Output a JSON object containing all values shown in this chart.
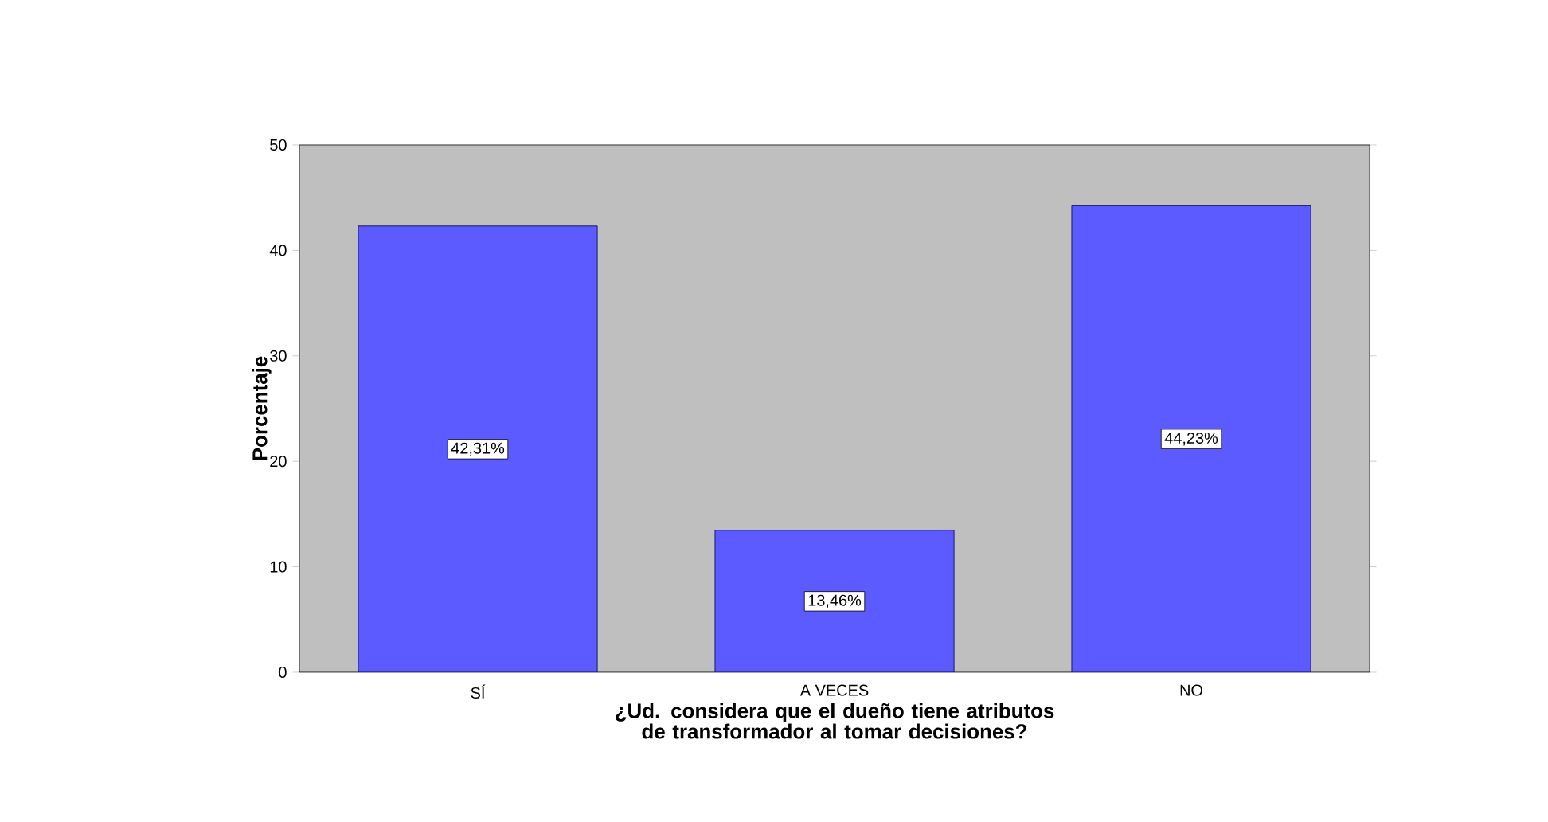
{
  "chart_data": {
    "type": "bar",
    "xlabel": "¿Ud. considera que el dueño tiene atributos de transformador al tomar decisiones?",
    "ylabel": "Porcentaje",
    "categories": [
      "SÍ",
      "A VECES",
      "NO"
    ],
    "values": [
      42.31,
      13.46,
      44.23
    ],
    "value_labels": [
      "42,31%",
      "13,46%",
      "44,23%"
    ],
    "color": "#5b5bff",
    "ylim": [
      0,
      50
    ],
    "yticks": [
      0,
      10,
      20,
      30,
      40,
      50
    ]
  }
}
